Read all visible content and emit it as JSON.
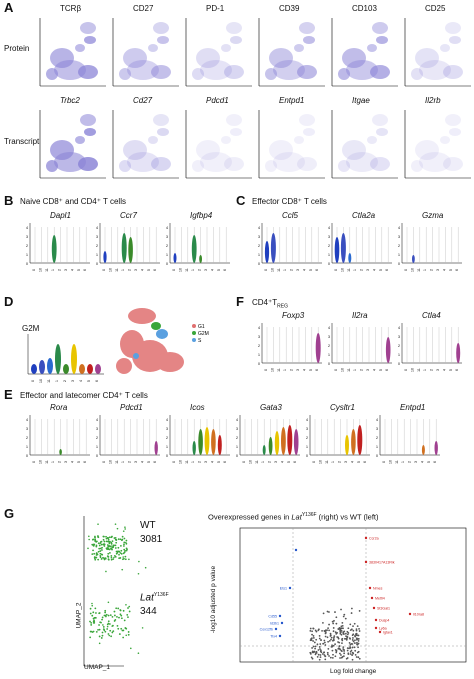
{
  "panel_labels": {
    "A": "A",
    "B": "B",
    "C": "C",
    "D": "D",
    "E": "E",
    "F": "F",
    "G": "G"
  },
  "panelA": {
    "protein_row_label": "Protein",
    "transcript_row_label": "Transcript",
    "protein_markers": [
      "TCRβ",
      "CD27",
      "PD-1",
      "CD39",
      "CD103",
      "CD25"
    ],
    "transcript_markers": [
      "Trbc2",
      "Cd27",
      "Pdcd1",
      "Entpd1",
      "Itgae",
      "Il2rb"
    ]
  },
  "panelB": {
    "title": "Naive CD8⁺ and CD4⁺ T cells",
    "genes": [
      "Dapl1",
      "Ccr7",
      "Igfbp4"
    ]
  },
  "panelC": {
    "title": "Effector CD8⁺ T cells",
    "genes": [
      "Ccl5",
      "Ctla2a",
      "Gzma"
    ]
  },
  "panelD": {
    "title": "G2M",
    "legend": [
      "G1",
      "G2M",
      "S"
    ]
  },
  "panelF": {
    "title_main": "CD4⁺T",
    "title_sub": "REG",
    "genes": [
      "Foxp3",
      "Il2ra",
      "Ctla4"
    ]
  },
  "panelE": {
    "title": "Effector and latecomer CD4⁺ T cells",
    "genes": [
      "Rora",
      "Pdcd1",
      "Icos",
      "Gata3",
      "Cysltr1",
      "Entpd1"
    ]
  },
  "violin_clusters": [
    "0",
    "10",
    "11",
    "1",
    "2",
    "3",
    "4",
    "5",
    "6"
  ],
  "panelG": {
    "wt_label": "WT",
    "wt_count": "3081",
    "laf_label": "Lat",
    "laf_sup": "Y136F",
    "laf_count": "344",
    "umap_x": "UMAP_1",
    "umap_y": "UMAP_2",
    "volcano_title_pre": "Overexpressed genes in ",
    "volcano_title_gene": "Lat",
    "volcano_title_sup": "Y136F",
    "volcano_title_post": " (right) vs WT (left)",
    "xlabel": "Log fold change",
    "ylabel": "-log10 adjusted p value",
    "right_genes": [
      "Ccr2a",
      "3830417A13Rik",
      "Nmes",
      "Mettl4",
      "St3Gal1",
      "Dusp4",
      "Ly6a",
      "Igtax1",
      "Il10ra8"
    ],
    "left_genes": [
      "Ets1",
      "Cd55",
      "Id3b1",
      "Cox12fb",
      "Tlx4"
    ]
  },
  "colors": {
    "umap": "#8a83d6",
    "violin_blue": "#1f3fbf",
    "violin_green": "#3a8a2a",
    "violin_yellow": "#e8c400",
    "violin_red": "#c02020",
    "violin_purple": "#a04090",
    "scatter_green": "#3aa63a",
    "volcano_red": "#cc2222",
    "volcano_blue": "#2255cc"
  }
}
